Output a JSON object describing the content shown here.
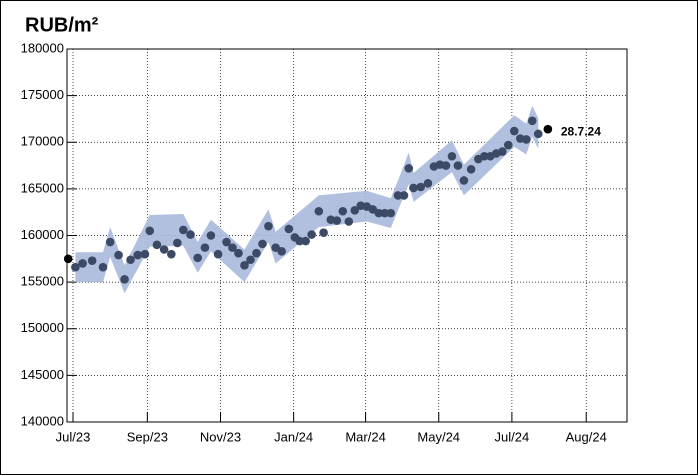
{
  "chart_data": {
    "type": "scatter",
    "title": "RUB/m²",
    "xlim": [
      -5,
      462
    ],
    "ylim": [
      140000,
      180000
    ],
    "xticks": [
      {
        "value": 0,
        "label": "Jul/23"
      },
      {
        "value": 62,
        "label": "Sep/23"
      },
      {
        "value": 123,
        "label": "Nov/23"
      },
      {
        "value": 184,
        "label": "Jan/24"
      },
      {
        "value": 244,
        "label": "Mar/24"
      },
      {
        "value": 305,
        "label": "May/24"
      },
      {
        "value": 366,
        "label": "Jul/24"
      },
      {
        "value": 428,
        "label": "Aug/24"
      }
    ],
    "yticks": [
      140000,
      145000,
      150000,
      155000,
      160000,
      165000,
      170000,
      175000,
      180000
    ],
    "grid": true,
    "band": {
      "color": "#a9b9dc",
      "x": [
        2,
        25,
        31,
        43,
        64,
        92,
        104,
        115,
        143,
        163,
        169,
        205,
        245,
        265,
        271,
        280,
        284,
        316,
        326,
        368,
        378,
        383,
        388
      ],
      "lower": [
        155000,
        155000,
        157700,
        153800,
        158800,
        158900,
        156000,
        158300,
        155000,
        159300,
        157000,
        160900,
        161500,
        160800,
        162700,
        165500,
        163600,
        166800,
        164300,
        169500,
        168700,
        170600,
        169300
      ],
      "upper": [
        158200,
        158200,
        160900,
        156800,
        162200,
        162300,
        159300,
        161700,
        158500,
        162800,
        160400,
        164300,
        164800,
        164000,
        165900,
        168900,
        166700,
        170200,
        167600,
        172900,
        172000,
        173900,
        172600
      ]
    },
    "series": [
      {
        "color": "#3d4a66",
        "x": [
          2,
          8,
          16,
          25,
          31,
          38,
          43,
          48,
          54,
          60,
          64,
          70,
          76,
          82,
          87,
          92,
          98,
          104,
          110,
          115,
          121,
          128,
          133,
          138,
          143,
          148,
          153,
          158,
          163,
          169,
          174,
          180,
          185,
          189,
          194,
          199,
          205,
          209,
          215,
          220,
          225,
          230,
          235,
          240,
          245,
          250,
          255,
          260,
          265,
          271,
          276,
          280,
          284,
          290,
          296,
          301,
          306,
          311,
          316,
          321,
          326,
          332,
          338,
          343,
          348,
          353,
          358,
          363,
          368,
          373,
          378,
          383,
          388
        ],
        "values": [
          156600,
          157000,
          157300,
          156600,
          159300,
          157900,
          155300,
          157400,
          157900,
          158000,
          160500,
          159000,
          158500,
          158000,
          159200,
          160600,
          160100,
          157600,
          158700,
          160000,
          158000,
          159300,
          158700,
          158100,
          156800,
          157400,
          158100,
          159100,
          161000,
          158700,
          158300,
          160700,
          159800,
          159400,
          159400,
          160100,
          162600,
          160300,
          161700,
          161600,
          162600,
          161500,
          162700,
          163200,
          163100,
          162800,
          162400,
          162400,
          162400,
          164300,
          164300,
          167200,
          165100,
          165200,
          165600,
          167400,
          167600,
          167500,
          168500,
          167500,
          165900,
          167100,
          168200,
          168500,
          168500,
          168800,
          169000,
          169700,
          171200,
          170400,
          170300,
          172300,
          170900
        ]
      },
      {
        "color": "#000000",
        "x": [
          -4,
          396
        ],
        "values": [
          157500,
          171400
        ]
      }
    ],
    "annotation": {
      "text": "28.7.24",
      "color": "#e8141c"
    }
  }
}
